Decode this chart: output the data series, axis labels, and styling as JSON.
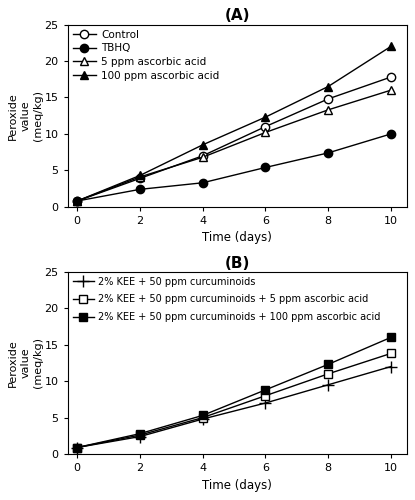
{
  "time": [
    0,
    2,
    4,
    6,
    8,
    10
  ],
  "panel_A": {
    "title": "(A)",
    "series": [
      {
        "label": "Control",
        "marker": "o",
        "filled": false,
        "values": [
          0.8,
          3.9,
          7.0,
          11.0,
          14.8,
          17.8
        ]
      },
      {
        "label": "TBHQ",
        "marker": "o",
        "filled": true,
        "values": [
          0.8,
          2.4,
          3.3,
          5.4,
          7.4,
          10.0
        ]
      },
      {
        "label": "5 ppm ascorbic acid",
        "marker": "^",
        "filled": false,
        "values": [
          0.8,
          4.1,
          6.8,
          10.2,
          13.3,
          16.0
        ]
      },
      {
        "label": "100 ppm ascorbic acid",
        "marker": "^",
        "filled": true,
        "values": [
          0.8,
          4.3,
          8.5,
          12.3,
          16.5,
          22.0
        ]
      }
    ],
    "ylabel": "Peroxide\nvalue\n(meq/kg)",
    "xlabel": "Time (days)",
    "ylim": [
      0,
      25
    ],
    "yticks": [
      0,
      5,
      10,
      15,
      20,
      25
    ],
    "xticks": [
      0,
      2,
      4,
      6,
      8,
      10
    ]
  },
  "panel_B": {
    "title": "(B)",
    "series": [
      {
        "label": "2% KEE + 50 ppm curcuminoids",
        "marker": "P",
        "filled": false,
        "cross": true,
        "values": [
          0.9,
          2.4,
          4.8,
          7.0,
          9.5,
          12.0
        ]
      },
      {
        "label": "2% KEE + 50 ppm curcuminoids + 5 ppm ascorbic acid",
        "marker": "s",
        "filled": false,
        "cross": false,
        "values": [
          0.9,
          2.6,
          5.0,
          8.0,
          11.0,
          13.8
        ]
      },
      {
        "label": "2% KEE + 50 ppm curcuminoids + 100 ppm ascorbic acid",
        "marker": "s",
        "filled": true,
        "cross": false,
        "values": [
          0.9,
          2.8,
          5.3,
          8.8,
          12.3,
          16.0
        ]
      }
    ],
    "ylabel": "Peroxide\nvalue\n(meq/kg)",
    "xlabel": "Time (days)",
    "ylim": [
      0,
      25
    ],
    "yticks": [
      0,
      5,
      10,
      15,
      20,
      25
    ],
    "xticks": [
      0,
      2,
      4,
      6,
      8,
      10
    ]
  },
  "line_color": "#000000",
  "fig_bg": "#ffffff"
}
